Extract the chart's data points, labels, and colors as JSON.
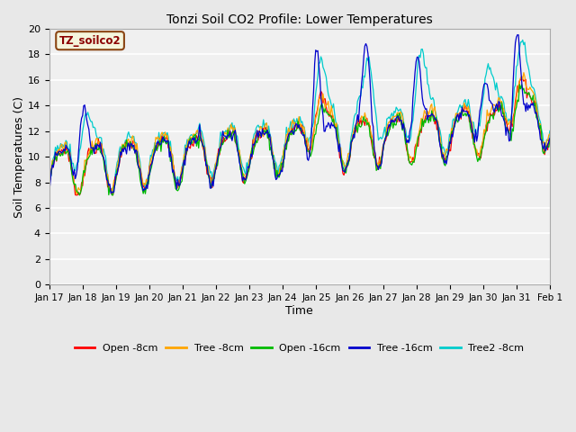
{
  "title": "Tonzi Soil CO2 Profile: Lower Temperatures",
  "xlabel": "Time",
  "ylabel": "Soil Temperatures (C)",
  "ylim": [
    0,
    20
  ],
  "yticks": [
    0,
    2,
    4,
    6,
    8,
    10,
    12,
    14,
    16,
    18,
    20
  ],
  "bg_color": "#e8e8e8",
  "plot_bg": "#f0f0f0",
  "legend_label": "TZ_soilco2",
  "legend_bg": "#f5f5dc",
  "legend_border": "#8b4513",
  "series": [
    {
      "label": "Open -8cm",
      "color": "#ff0000"
    },
    {
      "label": "Tree -8cm",
      "color": "#ffa500"
    },
    {
      "label": "Open -16cm",
      "color": "#00bb00"
    },
    {
      "label": "Tree -16cm",
      "color": "#0000cc"
    },
    {
      "label": "Tree2 -8cm",
      "color": "#00cccc"
    }
  ],
  "x_tick_labels": [
    "Jan 17",
    "Jan 18",
    "Jan 19",
    "Jan 20",
    "Jan 21",
    "Jan 22",
    "Jan 23",
    "Jan 24",
    "Jan 25",
    "Jan 26",
    "Jan 27",
    "Jan 28",
    "Jan 29",
    "Jan 30",
    "Jan 31",
    "Feb 1"
  ],
  "figsize": [
    6.4,
    4.8
  ],
  "dpi": 100
}
